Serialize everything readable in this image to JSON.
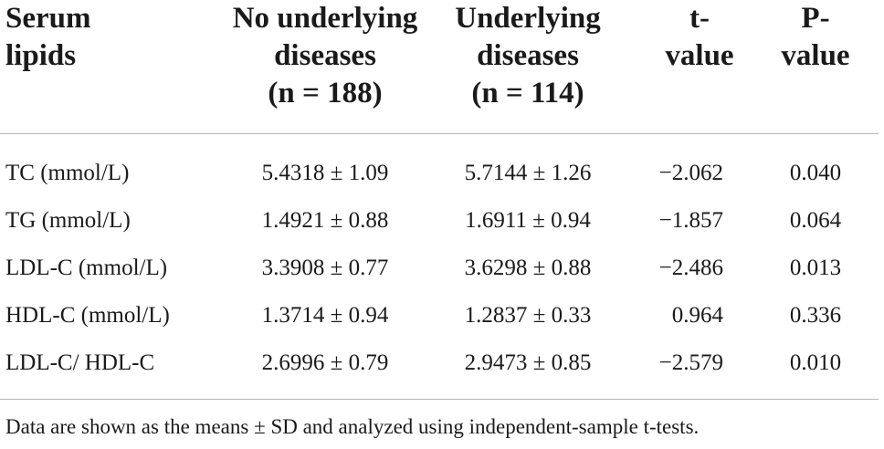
{
  "table": {
    "headers": {
      "col1": [
        "Serum",
        "lipids"
      ],
      "col2": [
        "No underlying",
        "diseases",
        "(n = 188)"
      ],
      "col3": [
        "Underlying",
        "diseases",
        "(n = 114)"
      ],
      "col4": [
        "t-",
        "value"
      ],
      "col5": [
        "P-",
        "value"
      ]
    },
    "rows": [
      [
        "TC (mmol/L)",
        "5.4318 ± 1.09",
        "5.7144 ± 1.26",
        "−2.062",
        "0.040"
      ],
      [
        "TG (mmol/L)",
        "1.4921 ± 0.88",
        "1.6911 ± 0.94",
        "−1.857",
        "0.064"
      ],
      [
        "LDL-C (mmol/L)",
        "3.3908 ± 0.77",
        "3.6298 ± 0.88",
        "−2.486",
        "0.013"
      ],
      [
        "HDL-C (mmol/L)",
        "1.3714 ± 0.94",
        "1.2837 ± 0.33",
        "0.964",
        "0.336"
      ],
      [
        "LDL-C/ HDL-C",
        "2.6996 ± 0.79",
        "2.9473 ± 0.85",
        "−2.579",
        "0.010"
      ]
    ]
  },
  "footnote": "Data are shown as the means ± SD and analyzed using independent-sample t-tests."
}
